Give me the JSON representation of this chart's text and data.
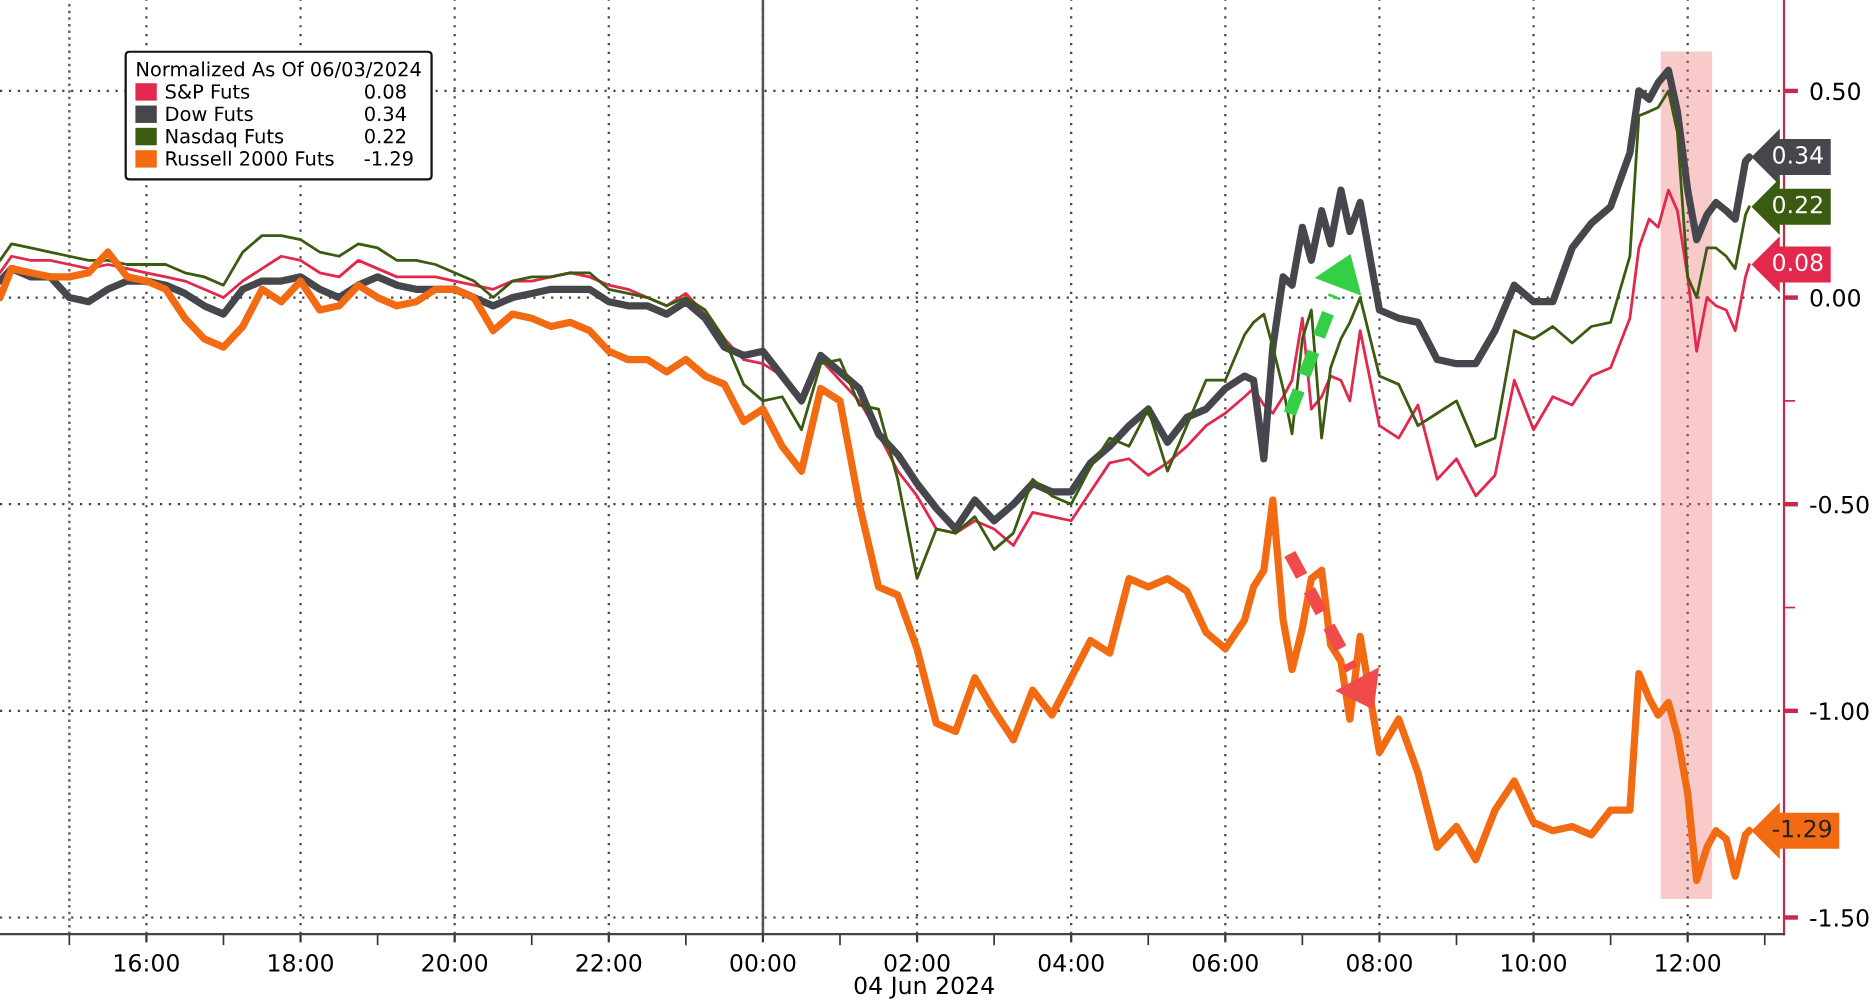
{
  "chart_data": {
    "type": "line",
    "legend_title": "Normalized As Of 06/03/2024",
    "xlabel": "04 Jun 2024",
    "legend": "top left",
    "grid": true,
    "xlim": [
      "2024-06-03T14:06",
      "2024-06-04T13:15"
    ],
    "xticks": [
      {
        "value": "2024-06-03T15:00",
        "label": null
      },
      {
        "value": "2024-06-03T16:00",
        "label": "16:00"
      },
      {
        "value": "2024-06-03T17:00",
        "label": null
      },
      {
        "value": "2024-06-03T18:00",
        "label": "18:00"
      },
      {
        "value": "2024-06-03T19:00",
        "label": null
      },
      {
        "value": "2024-06-03T20:00",
        "label": "20:00"
      },
      {
        "value": "2024-06-03T21:00",
        "label": null
      },
      {
        "value": "2024-06-03T22:00",
        "label": "22:00"
      },
      {
        "value": "2024-06-03T23:00",
        "label": null
      },
      {
        "value": "2024-06-04T00:00",
        "label": "00:00"
      },
      {
        "value": "2024-06-04T01:00",
        "label": null
      },
      {
        "value": "2024-06-04T02:00",
        "label": "02:00"
      },
      {
        "value": "2024-06-04T03:00",
        "label": null
      },
      {
        "value": "2024-06-04T04:00",
        "label": "04:00"
      },
      {
        "value": "2024-06-04T05:00",
        "label": null
      },
      {
        "value": "2024-06-04T06:00",
        "label": "06:00"
      },
      {
        "value": "2024-06-04T07:00",
        "label": null
      },
      {
        "value": "2024-06-04T08:00",
        "label": "08:00"
      },
      {
        "value": "2024-06-04T09:00",
        "label": null
      },
      {
        "value": "2024-06-04T10:00",
        "label": "10:00"
      },
      {
        "value": "2024-06-04T11:00",
        "label": null
      },
      {
        "value": "2024-06-04T12:00",
        "label": "12:00"
      },
      {
        "value": "2024-06-04T13:00",
        "label": null
      }
    ],
    "ylim": [
      -1.54,
      0.72
    ],
    "yticks": [
      {
        "value": 0.5,
        "label": "0.50"
      },
      {
        "value": 0.25,
        "label": null
      },
      {
        "value": 0,
        "label": "0.00"
      },
      {
        "value": -0.25,
        "label": null
      },
      {
        "value": -0.5,
        "label": "-0.50"
      },
      {
        "value": -0.75,
        "label": null
      },
      {
        "value": -1,
        "label": "-1.00"
      },
      {
        "value": -1.25,
        "label": null
      },
      {
        "value": -1.5,
        "label": "-1.50"
      }
    ],
    "ref_lines": [
      {
        "axis": "x",
        "value": "2024-06-03T15:00",
        "color": "#666666",
        "line_style": "dotted"
      },
      {
        "axis": "x",
        "value": "2024-06-04T00:00",
        "color": "#555555",
        "line_style": "solid"
      }
    ],
    "bands": [
      {
        "axis": "x",
        "from": "2024-06-04T11:39",
        "to": "2024-06-04T12:19",
        "color": "#ee6666"
      }
    ],
    "x": [
      "2024-06-03T14:06",
      "2024-06-03T14:15",
      "2024-06-03T14:30",
      "2024-06-03T14:45",
      "2024-06-03T15:00",
      "2024-06-03T15:15",
      "2024-06-03T15:30",
      "2024-06-03T15:45",
      "2024-06-03T16:00",
      "2024-06-03T16:15",
      "2024-06-03T16:30",
      "2024-06-03T16:45",
      "2024-06-03T17:00",
      "2024-06-03T17:15",
      "2024-06-03T17:30",
      "2024-06-03T17:45",
      "2024-06-03T18:00",
      "2024-06-03T18:15",
      "2024-06-03T18:30",
      "2024-06-03T18:45",
      "2024-06-03T19:00",
      "2024-06-03T19:15",
      "2024-06-03T19:30",
      "2024-06-03T19:45",
      "2024-06-03T20:00",
      "2024-06-03T20:15",
      "2024-06-03T20:30",
      "2024-06-03T20:45",
      "2024-06-03T21:00",
      "2024-06-03T21:15",
      "2024-06-03T21:30",
      "2024-06-03T21:45",
      "2024-06-03T22:00",
      "2024-06-03T22:15",
      "2024-06-03T22:30",
      "2024-06-03T22:45",
      "2024-06-03T23:00",
      "2024-06-03T23:15",
      "2024-06-03T23:30",
      "2024-06-03T23:45",
      "2024-06-04T00:00",
      "2024-06-04T00:15",
      "2024-06-04T00:30",
      "2024-06-04T00:45",
      "2024-06-04T01:00",
      "2024-06-04T01:15",
      "2024-06-04T01:30",
      "2024-06-04T01:45",
      "2024-06-04T02:00",
      "2024-06-04T02:15",
      "2024-06-04T02:30",
      "2024-06-04T02:45",
      "2024-06-04T03:00",
      "2024-06-04T03:15",
      "2024-06-04T03:30",
      "2024-06-04T03:45",
      "2024-06-04T04:00",
      "2024-06-04T04:15",
      "2024-06-04T04:30",
      "2024-06-04T04:45",
      "2024-06-04T05:00",
      "2024-06-04T05:15",
      "2024-06-04T05:30",
      "2024-06-04T05:45",
      "2024-06-04T06:00",
      "2024-06-04T06:15",
      "2024-06-04T06:22",
      "2024-06-04T06:30",
      "2024-06-04T06:37",
      "2024-06-04T06:45",
      "2024-06-04T06:52",
      "2024-06-04T07:00",
      "2024-06-04T07:07",
      "2024-06-04T07:15",
      "2024-06-04T07:22",
      "2024-06-04T07:30",
      "2024-06-04T07:37",
      "2024-06-04T07:45",
      "2024-06-04T08:00",
      "2024-06-04T08:15",
      "2024-06-04T08:30",
      "2024-06-04T08:45",
      "2024-06-04T09:00",
      "2024-06-04T09:15",
      "2024-06-04T09:30",
      "2024-06-04T09:45",
      "2024-06-04T10:00",
      "2024-06-04T10:15",
      "2024-06-04T10:30",
      "2024-06-04T10:45",
      "2024-06-04T11:00",
      "2024-06-04T11:15",
      "2024-06-04T11:22",
      "2024-06-04T11:30",
      "2024-06-04T11:37",
      "2024-06-04T11:45",
      "2024-06-04T11:52",
      "2024-06-04T12:00",
      "2024-06-04T12:07",
      "2024-06-04T12:15",
      "2024-06-04T12:22",
      "2024-06-04T12:30",
      "2024-06-04T12:37",
      "2024-06-04T12:45",
      "2024-06-04T12:48"
    ],
    "series": [
      {
        "name": "S&P Futs",
        "color": "#e3284d",
        "values": [
          0.06,
          0.1,
          0.09,
          0.09,
          0.08,
          0.07,
          0.08,
          0.07,
          0.06,
          0.05,
          0.04,
          0.02,
          0.0,
          0.04,
          0.07,
          0.1,
          0.09,
          0.06,
          0.05,
          0.09,
          0.07,
          0.05,
          0.05,
          0.05,
          0.04,
          0.03,
          0.02,
          0.04,
          0.04,
          0.05,
          0.06,
          0.05,
          0.03,
          0.02,
          0.0,
          -0.02,
          0.01,
          -0.04,
          -0.1,
          -0.15,
          -0.16,
          -0.19,
          -0.24,
          -0.15,
          -0.2,
          -0.25,
          -0.33,
          -0.42,
          -0.48,
          -0.56,
          -0.57,
          -0.54,
          -0.56,
          -0.6,
          -0.52,
          -0.53,
          -0.54,
          -0.47,
          -0.4,
          -0.39,
          -0.43,
          -0.4,
          -0.36,
          -0.31,
          -0.28,
          -0.24,
          -0.22,
          -0.26,
          -0.28,
          -0.24,
          -0.2,
          -0.05,
          -0.27,
          -0.24,
          -0.19,
          -0.2,
          -0.25,
          -0.08,
          -0.31,
          -0.34,
          -0.26,
          -0.44,
          -0.39,
          -0.48,
          -0.43,
          -0.2,
          -0.32,
          -0.24,
          -0.26,
          -0.19,
          -0.17,
          -0.05,
          0.12,
          0.19,
          0.17,
          0.26,
          0.21,
          0.05,
          -0.13,
          0.0,
          -0.02,
          -0.03,
          -0.08,
          0.05,
          0.08
        ],
        "value_labels": [
          null,
          null,
          null,
          null,
          null,
          null,
          null,
          null,
          null,
          null,
          null,
          null,
          null,
          null,
          null,
          null,
          null,
          null,
          null,
          null,
          null,
          null,
          null,
          null,
          null,
          null,
          null,
          null,
          null,
          null,
          null,
          null,
          null,
          null,
          null,
          null,
          null,
          null,
          null,
          null,
          null,
          null,
          null,
          null,
          null,
          null,
          null,
          null,
          null,
          null,
          null,
          null,
          null,
          null,
          null,
          null,
          null,
          null,
          null,
          null,
          null,
          null,
          null,
          null,
          null,
          null,
          null,
          null,
          null,
          null,
          null,
          null,
          null,
          null,
          null,
          null,
          null,
          null,
          null,
          null,
          null,
          null,
          null,
          null,
          null,
          null,
          null,
          null,
          null,
          null,
          null,
          null,
          null,
          null,
          null,
          null,
          null,
          null,
          null,
          null,
          null,
          null,
          null,
          null,
          "0.08"
        ]
      },
      {
        "name": "Dow Futs",
        "color": "#45474c",
        "values": [
          0.04,
          0.07,
          0.05,
          0.05,
          0.0,
          -0.01,
          0.02,
          0.04,
          0.04,
          0.03,
          0.01,
          -0.02,
          -0.04,
          0.02,
          0.04,
          0.04,
          0.05,
          0.02,
          0.0,
          0.03,
          0.05,
          0.03,
          0.02,
          0.02,
          0.02,
          0.0,
          -0.02,
          0.0,
          0.01,
          0.02,
          0.02,
          0.02,
          -0.01,
          -0.02,
          -0.02,
          -0.04,
          -0.01,
          -0.05,
          -0.12,
          -0.14,
          -0.13,
          -0.19,
          -0.25,
          -0.14,
          -0.18,
          -0.22,
          -0.33,
          -0.38,
          -0.45,
          -0.51,
          -0.56,
          -0.49,
          -0.54,
          -0.5,
          -0.45,
          -0.47,
          -0.47,
          -0.4,
          -0.36,
          -0.31,
          -0.27,
          -0.35,
          -0.29,
          -0.27,
          -0.22,
          -0.19,
          -0.2,
          -0.39,
          -0.12,
          0.05,
          0.03,
          0.17,
          0.09,
          0.21,
          0.13,
          0.26,
          0.16,
          0.23,
          -0.03,
          -0.05,
          -0.06,
          -0.15,
          -0.16,
          -0.16,
          -0.08,
          0.03,
          -0.01,
          -0.01,
          0.12,
          0.18,
          0.22,
          0.35,
          0.5,
          0.48,
          0.52,
          0.55,
          0.45,
          0.26,
          0.14,
          0.2,
          0.23,
          0.21,
          0.19,
          0.33,
          0.34
        ],
        "value_labels": [
          null,
          null,
          null,
          null,
          null,
          null,
          null,
          null,
          null,
          null,
          null,
          null,
          null,
          null,
          null,
          null,
          null,
          null,
          null,
          null,
          null,
          null,
          null,
          null,
          null,
          null,
          null,
          null,
          null,
          null,
          null,
          null,
          null,
          null,
          null,
          null,
          null,
          null,
          null,
          null,
          null,
          null,
          null,
          null,
          null,
          null,
          null,
          null,
          null,
          null,
          null,
          null,
          null,
          null,
          null,
          null,
          null,
          null,
          null,
          null,
          null,
          null,
          null,
          null,
          null,
          null,
          null,
          null,
          null,
          null,
          null,
          null,
          null,
          null,
          null,
          null,
          null,
          null,
          null,
          null,
          null,
          null,
          null,
          null,
          null,
          null,
          null,
          null,
          null,
          null,
          null,
          null,
          null,
          null,
          null,
          null,
          null,
          null,
          null,
          null,
          null,
          null,
          null,
          null,
          "0.34"
        ]
      },
      {
        "name": "Nasdaq Futs",
        "color": "#3b5b10",
        "values": [
          0.09,
          0.13,
          0.12,
          0.11,
          0.1,
          0.09,
          0.09,
          0.08,
          0.08,
          0.08,
          0.06,
          0.05,
          0.03,
          0.11,
          0.15,
          0.15,
          0.14,
          0.11,
          0.1,
          0.13,
          0.12,
          0.09,
          0.09,
          0.08,
          0.06,
          0.04,
          0.0,
          0.04,
          0.05,
          0.05,
          0.06,
          0.06,
          0.02,
          0.01,
          0.0,
          -0.02,
          0.0,
          -0.03,
          -0.1,
          -0.21,
          -0.25,
          -0.24,
          -0.32,
          -0.16,
          -0.15,
          -0.26,
          -0.27,
          -0.44,
          -0.68,
          -0.56,
          -0.57,
          -0.53,
          -0.61,
          -0.57,
          -0.44,
          -0.48,
          -0.5,
          -0.41,
          -0.34,
          -0.36,
          -0.27,
          -0.42,
          -0.31,
          -0.2,
          -0.2,
          -0.09,
          -0.06,
          -0.04,
          -0.12,
          -0.22,
          -0.33,
          -0.1,
          -0.03,
          -0.34,
          -0.17,
          -0.1,
          -0.06,
          0.0,
          -0.19,
          -0.21,
          -0.31,
          -0.28,
          -0.25,
          -0.36,
          -0.34,
          -0.08,
          -0.1,
          -0.07,
          -0.11,
          -0.07,
          -0.06,
          0.1,
          0.44,
          0.45,
          0.46,
          0.5,
          0.4,
          0.05,
          0.0,
          0.12,
          0.12,
          0.1,
          0.07,
          0.2,
          0.22
        ],
        "value_labels": [
          null,
          null,
          null,
          null,
          null,
          null,
          null,
          null,
          null,
          null,
          null,
          null,
          null,
          null,
          null,
          null,
          null,
          null,
          null,
          null,
          null,
          null,
          null,
          null,
          null,
          null,
          null,
          null,
          null,
          null,
          null,
          null,
          null,
          null,
          null,
          null,
          null,
          null,
          null,
          null,
          null,
          null,
          null,
          null,
          null,
          null,
          null,
          null,
          null,
          null,
          null,
          null,
          null,
          null,
          null,
          null,
          null,
          null,
          null,
          null,
          null,
          null,
          null,
          null,
          null,
          null,
          null,
          null,
          null,
          null,
          null,
          null,
          null,
          null,
          null,
          null,
          null,
          null,
          null,
          null,
          null,
          null,
          null,
          null,
          null,
          null,
          null,
          null,
          null,
          null,
          null,
          null,
          null,
          null,
          null,
          null,
          null,
          null,
          null,
          null,
          null,
          null,
          null,
          null,
          "0.22"
        ]
      },
      {
        "name": "Russell 2000 Futs",
        "color": "#f26b12",
        "values": [
          0.0,
          0.07,
          0.06,
          0.05,
          0.05,
          0.06,
          0.11,
          0.05,
          0.04,
          0.02,
          -0.05,
          -0.1,
          -0.12,
          -0.07,
          0.02,
          -0.01,
          0.04,
          -0.03,
          -0.02,
          0.03,
          0.0,
          -0.02,
          -0.01,
          0.02,
          0.02,
          0.0,
          -0.08,
          -0.04,
          -0.05,
          -0.07,
          -0.06,
          -0.08,
          -0.13,
          -0.15,
          -0.15,
          -0.18,
          -0.15,
          -0.19,
          -0.21,
          -0.3,
          -0.27,
          -0.36,
          -0.42,
          -0.22,
          -0.25,
          -0.5,
          -0.7,
          -0.72,
          -0.85,
          -1.03,
          -1.05,
          -0.92,
          -1.0,
          -1.07,
          -0.95,
          -1.01,
          -0.92,
          -0.83,
          -0.86,
          -0.68,
          -0.7,
          -0.68,
          -0.71,
          -0.81,
          -0.85,
          -0.78,
          -0.7,
          -0.66,
          -0.49,
          -0.78,
          -0.9,
          -0.8,
          -0.68,
          -0.66,
          -0.84,
          -0.88,
          -1.02,
          -0.82,
          -1.1,
          -1.02,
          -1.15,
          -1.33,
          -1.28,
          -1.36,
          -1.24,
          -1.17,
          -1.27,
          -1.29,
          -1.28,
          -1.3,
          -1.24,
          -1.24,
          -0.91,
          -0.97,
          -1.01,
          -0.98,
          -1.06,
          -1.2,
          -1.41,
          -1.33,
          -1.29,
          -1.31,
          -1.4,
          -1.3,
          -1.29
        ],
        "value_labels": [
          null,
          null,
          null,
          null,
          null,
          null,
          null,
          null,
          null,
          null,
          null,
          null,
          null,
          null,
          null,
          null,
          null,
          null,
          null,
          null,
          null,
          null,
          null,
          null,
          null,
          null,
          null,
          null,
          null,
          null,
          null,
          null,
          null,
          null,
          null,
          null,
          null,
          null,
          null,
          null,
          null,
          null,
          null,
          null,
          null,
          null,
          null,
          null,
          null,
          null,
          null,
          null,
          null,
          null,
          null,
          null,
          null,
          null,
          null,
          null,
          null,
          null,
          null,
          null,
          null,
          null,
          null,
          null,
          null,
          null,
          null,
          null,
          null,
          null,
          null,
          null,
          null,
          null,
          null,
          null,
          null,
          null,
          null,
          null,
          null,
          null,
          null,
          null,
          null,
          null,
          null,
          null,
          null,
          null,
          null,
          null,
          null,
          null,
          null,
          null,
          null,
          null,
          null,
          null,
          "-1.29"
        ]
      }
    ]
  }
}
